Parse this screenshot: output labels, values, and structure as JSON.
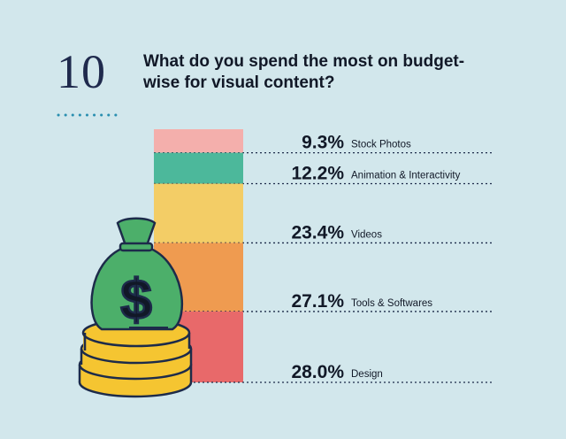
{
  "chart_data": {
    "type": "stacked-bar",
    "number": "10",
    "title": "What do you spend the most on budget-wise for visual content?",
    "categories": [
      "Stock Photos",
      "Animation & Interactivity",
      "Videos",
      "Tools & Softwares",
      "Design"
    ],
    "values": [
      9.3,
      12.2,
      23.4,
      27.1,
      28.0
    ],
    "value_labels": [
      "9.3%",
      "12.2%",
      "23.4%",
      "27.1%",
      "28.0%"
    ],
    "colors": [
      "#f4afac",
      "#4cb89b",
      "#f3cd66",
      "#ef9b50",
      "#e8696a"
    ],
    "ylim": [
      0,
      100
    ]
  }
}
